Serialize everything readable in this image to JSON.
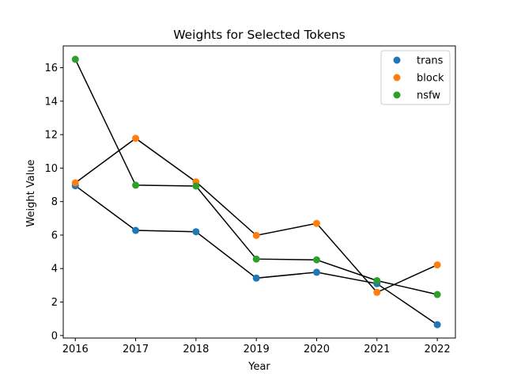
{
  "chart_data": {
    "type": "scatter",
    "title": "Weights for Selected Tokens",
    "xlabel": "Year",
    "ylabel": "Weight Value",
    "x": [
      2016,
      2017,
      2018,
      2019,
      2020,
      2021,
      2022
    ],
    "xlim": [
      2015.8,
      2022.3
    ],
    "ylim": [
      -0.15,
      17.3
    ],
    "yticks": [
      0,
      2,
      4,
      6,
      8,
      10,
      12,
      14,
      16
    ],
    "grid": false,
    "legend_position": "top-right",
    "connecting_line_color": "#000000",
    "series": [
      {
        "name": "trans",
        "color": "#1f77b4",
        "values": [
          8.95,
          6.28,
          6.2,
          3.43,
          3.78,
          3.1,
          0.65
        ]
      },
      {
        "name": "block",
        "color": "#ff7f0e",
        "values": [
          9.12,
          11.78,
          9.18,
          5.98,
          6.7,
          2.58,
          4.22
        ]
      },
      {
        "name": "nsfw",
        "color": "#2ca02c",
        "values": [
          16.5,
          8.98,
          8.93,
          4.57,
          4.52,
          3.28,
          2.45
        ]
      }
    ]
  }
}
